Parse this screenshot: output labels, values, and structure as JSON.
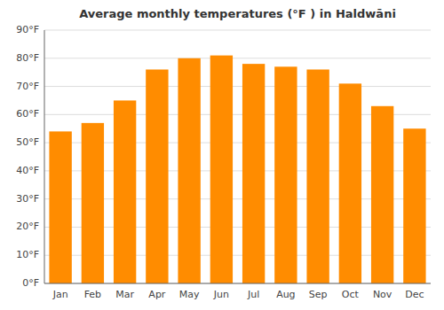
{
  "chart_data": {
    "type": "bar",
    "title": "Average monthly temperatures (°F ) in Haldwāni",
    "categories": [
      "Jan",
      "Feb",
      "Mar",
      "Apr",
      "May",
      "Jun",
      "Jul",
      "Aug",
      "Sep",
      "Oct",
      "Nov",
      "Dec"
    ],
    "values": [
      54,
      57,
      65,
      76,
      80,
      81,
      78,
      77,
      76,
      71,
      63,
      55
    ],
    "color": "#FF8C00",
    "ylim": [
      0,
      90
    ],
    "yticks": [
      {
        "value": 0,
        "label": "0°F"
      },
      {
        "value": 10,
        "label": "10°F"
      },
      {
        "value": 20,
        "label": "20°F"
      },
      {
        "value": 30,
        "label": "30°F"
      },
      {
        "value": 40,
        "label": "40°F"
      },
      {
        "value": 50,
        "label": "50°F"
      },
      {
        "value": 60,
        "label": "60°F"
      },
      {
        "value": 70,
        "label": "70°F"
      },
      {
        "value": 80,
        "label": "80°F"
      },
      {
        "value": 90,
        "label": "90°F"
      }
    ],
    "grid": true
  }
}
